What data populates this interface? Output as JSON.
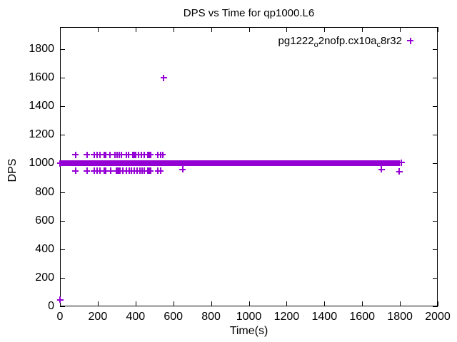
{
  "chart_data": {
    "type": "scatter",
    "title": "DPS vs Time for qp1000.L6",
    "xlabel": "Time(s)",
    "ylabel": "DPS",
    "xlim": [
      0,
      2000
    ],
    "ylim": [
      0,
      1955
    ],
    "xticks": [
      0,
      200,
      400,
      600,
      800,
      1000,
      1200,
      1400,
      1600,
      1800,
      2000
    ],
    "yticks": [
      0,
      200,
      400,
      600,
      800,
      1000,
      1200,
      1400,
      1600,
      1800
    ],
    "grid": false,
    "background": "#ffffff",
    "axis_color": "#000000",
    "legend": {
      "position": "top-right-inside",
      "marker": "plus",
      "label_plain": "pg1222_o2nofp.cx10a_c8r32",
      "label_parts": [
        {
          "text": "pg1222",
          "sub": false
        },
        {
          "text": "o",
          "sub": true
        },
        {
          "text": "2nofp.cx10a",
          "sub": false
        },
        {
          "text": "c",
          "sub": true
        },
        {
          "text": "8r32",
          "sub": false
        }
      ]
    },
    "series": [
      {
        "name": "pg1222_o2nofp.cx10a_c8r32",
        "color": "#9400d3",
        "marker": "plus",
        "band": {
          "x_start": 0,
          "x_end": 1800,
          "y": 1000,
          "y_halfwidth": 20
        },
        "clusters": [
          {
            "y": 1060,
            "x": [
              82,
              142,
              180,
              196,
              212,
              234,
              243,
              266,
              291,
              302,
              314,
              325,
              350,
              363,
              386,
              393,
              401,
              417,
              432,
              447,
              464,
              473,
              480,
              518,
              533,
              543
            ]
          },
          {
            "y": 948,
            "x": [
              82,
              142,
              180,
              196,
              212,
              234,
              243,
              268,
              300,
              306,
              312,
              319,
              332,
              350,
              367,
              379,
              392,
              407,
              422,
              435,
              447,
              464,
              472,
              480,
              518,
              533
            ]
          }
        ],
        "points": [
          [
            0,
            45
          ],
          [
            0,
            1000
          ],
          [
            550,
            1600
          ],
          [
            650,
            960
          ],
          [
            1703,
            960
          ],
          [
            1796,
            945
          ],
          [
            1808,
            1005
          ]
        ]
      }
    ]
  }
}
